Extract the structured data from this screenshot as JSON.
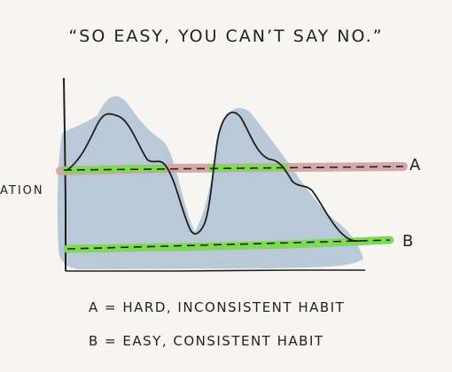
{
  "title": "“So easy, you can’t say no.”",
  "y_axis_label": "ation",
  "lines": {
    "a": {
      "label": "A",
      "color": "#d4a3a3"
    },
    "b": {
      "label": "B",
      "color": "#7ed957"
    }
  },
  "legend": {
    "a": "A = Hard, inconsistent habit",
    "b": "B = Easy, consistent habit"
  },
  "colors": {
    "motivation_fill": "#b9c9d7",
    "motivation_stroke": "#1f1f1f",
    "background": "#f6f5f1"
  }
}
